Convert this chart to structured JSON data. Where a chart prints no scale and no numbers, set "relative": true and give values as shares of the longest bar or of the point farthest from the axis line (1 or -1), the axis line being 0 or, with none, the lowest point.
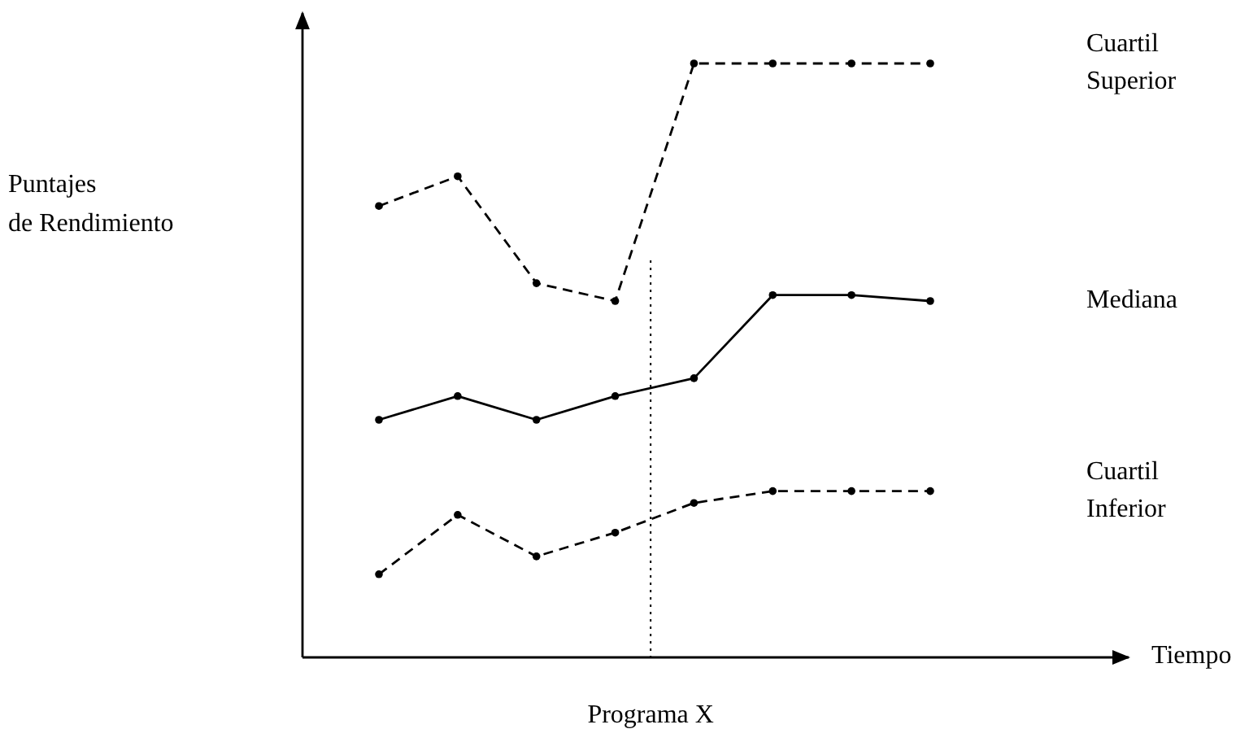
{
  "chart_data": {
    "type": "line",
    "relative": true,
    "categories": [
      null,
      null,
      null,
      null,
      null,
      null,
      null,
      null
    ],
    "series": [
      {
        "name": "Cuartil Superior",
        "color": "#000000",
        "line_style": "dashed",
        "values": [
          0.76,
          0.81,
          0.63,
          0.6,
          1,
          1,
          1,
          1
        ]
      },
      {
        "name": "Mediana",
        "color": "#000000",
        "line_style": "solid",
        "values": [
          0.4,
          0.44,
          0.4,
          0.44,
          0.47,
          0.61,
          0.61,
          0.6
        ]
      },
      {
        "name": "Cuartil Inferior",
        "color": "#000000",
        "line_style": "dashed",
        "values": [
          0.14,
          0.24,
          0.17,
          0.21,
          0.26,
          0.28,
          0.28,
          0.28
        ]
      }
    ],
    "annotations": [
      "Puntajes de Rendimiento",
      "Tiempo",
      "Programa X"
    ],
    "marker": "circle"
  }
}
